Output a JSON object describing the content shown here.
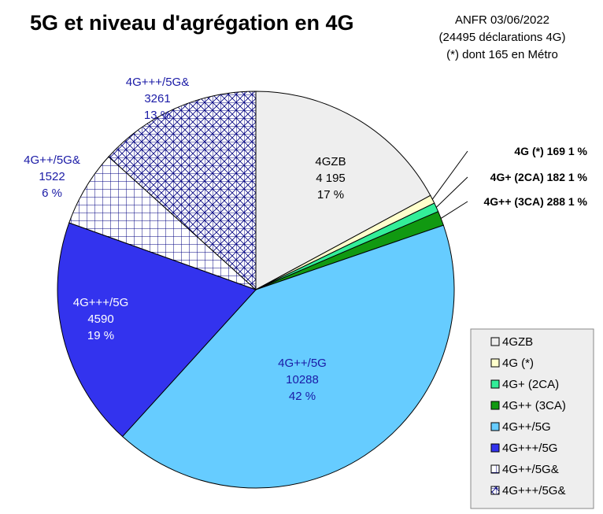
{
  "header": {
    "title": "5G et niveau d'agrégation en 4G",
    "source_line1": "ANFR 03/06/2022",
    "source_line2": "(24495 déclarations 4G)",
    "source_line3": "(*) dont 165 en Métro"
  },
  "chart_data": {
    "type": "pie",
    "title": "5G et niveau d'agrégation en 4G",
    "legend_position": "bottom-right",
    "start_angle_deg": 0,
    "direction": "clockwise",
    "slices": [
      {
        "name": "4GZB",
        "value": 4195,
        "value_label": "4 195",
        "percent_label": "17 %",
        "color": "#eeeeee",
        "pattern": "none",
        "label_color": "dark",
        "label_inside": true
      },
      {
        "name": "4G (*)",
        "value": 169,
        "value_label": "169",
        "percent_label": "1 %",
        "color": "#ffffcc",
        "pattern": "none",
        "label_color": "dark",
        "label_inside": false
      },
      {
        "name": "4G+ (2CA)",
        "value": 182,
        "value_label": "182",
        "percent_label": "1 %",
        "color": "#33ee99",
        "pattern": "none",
        "label_color": "dark",
        "label_inside": false
      },
      {
        "name": "4G++ (3CA)",
        "value": 288,
        "value_label": "288",
        "percent_label": "1 %",
        "color": "#119911",
        "pattern": "none",
        "label_color": "dark",
        "label_inside": false
      },
      {
        "name": "4G++/5G",
        "value": 10288,
        "value_label": "10288",
        "percent_label": "42 %",
        "color": "#66ccff",
        "pattern": "none",
        "label_color": "blue",
        "label_inside": true
      },
      {
        "name": "4G+++/5G",
        "value": 4590,
        "value_label": "4590",
        "percent_label": "19 %",
        "color": "#3333ee",
        "pattern": "none",
        "label_color": "white",
        "label_inside": true
      },
      {
        "name": "4G++/5G&",
        "value": 1522,
        "value_label": "1522",
        "percent_label": "6 %",
        "color": "#000080",
        "pattern": "grid",
        "label_color": "blue",
        "label_inside": false
      },
      {
        "name": "4G+++/5G&",
        "value": 3261,
        "value_label": "3261",
        "percent_label": "13 %",
        "color": "#000080",
        "pattern": "crosshatch",
        "label_color": "blue",
        "label_inside": false
      }
    ]
  }
}
